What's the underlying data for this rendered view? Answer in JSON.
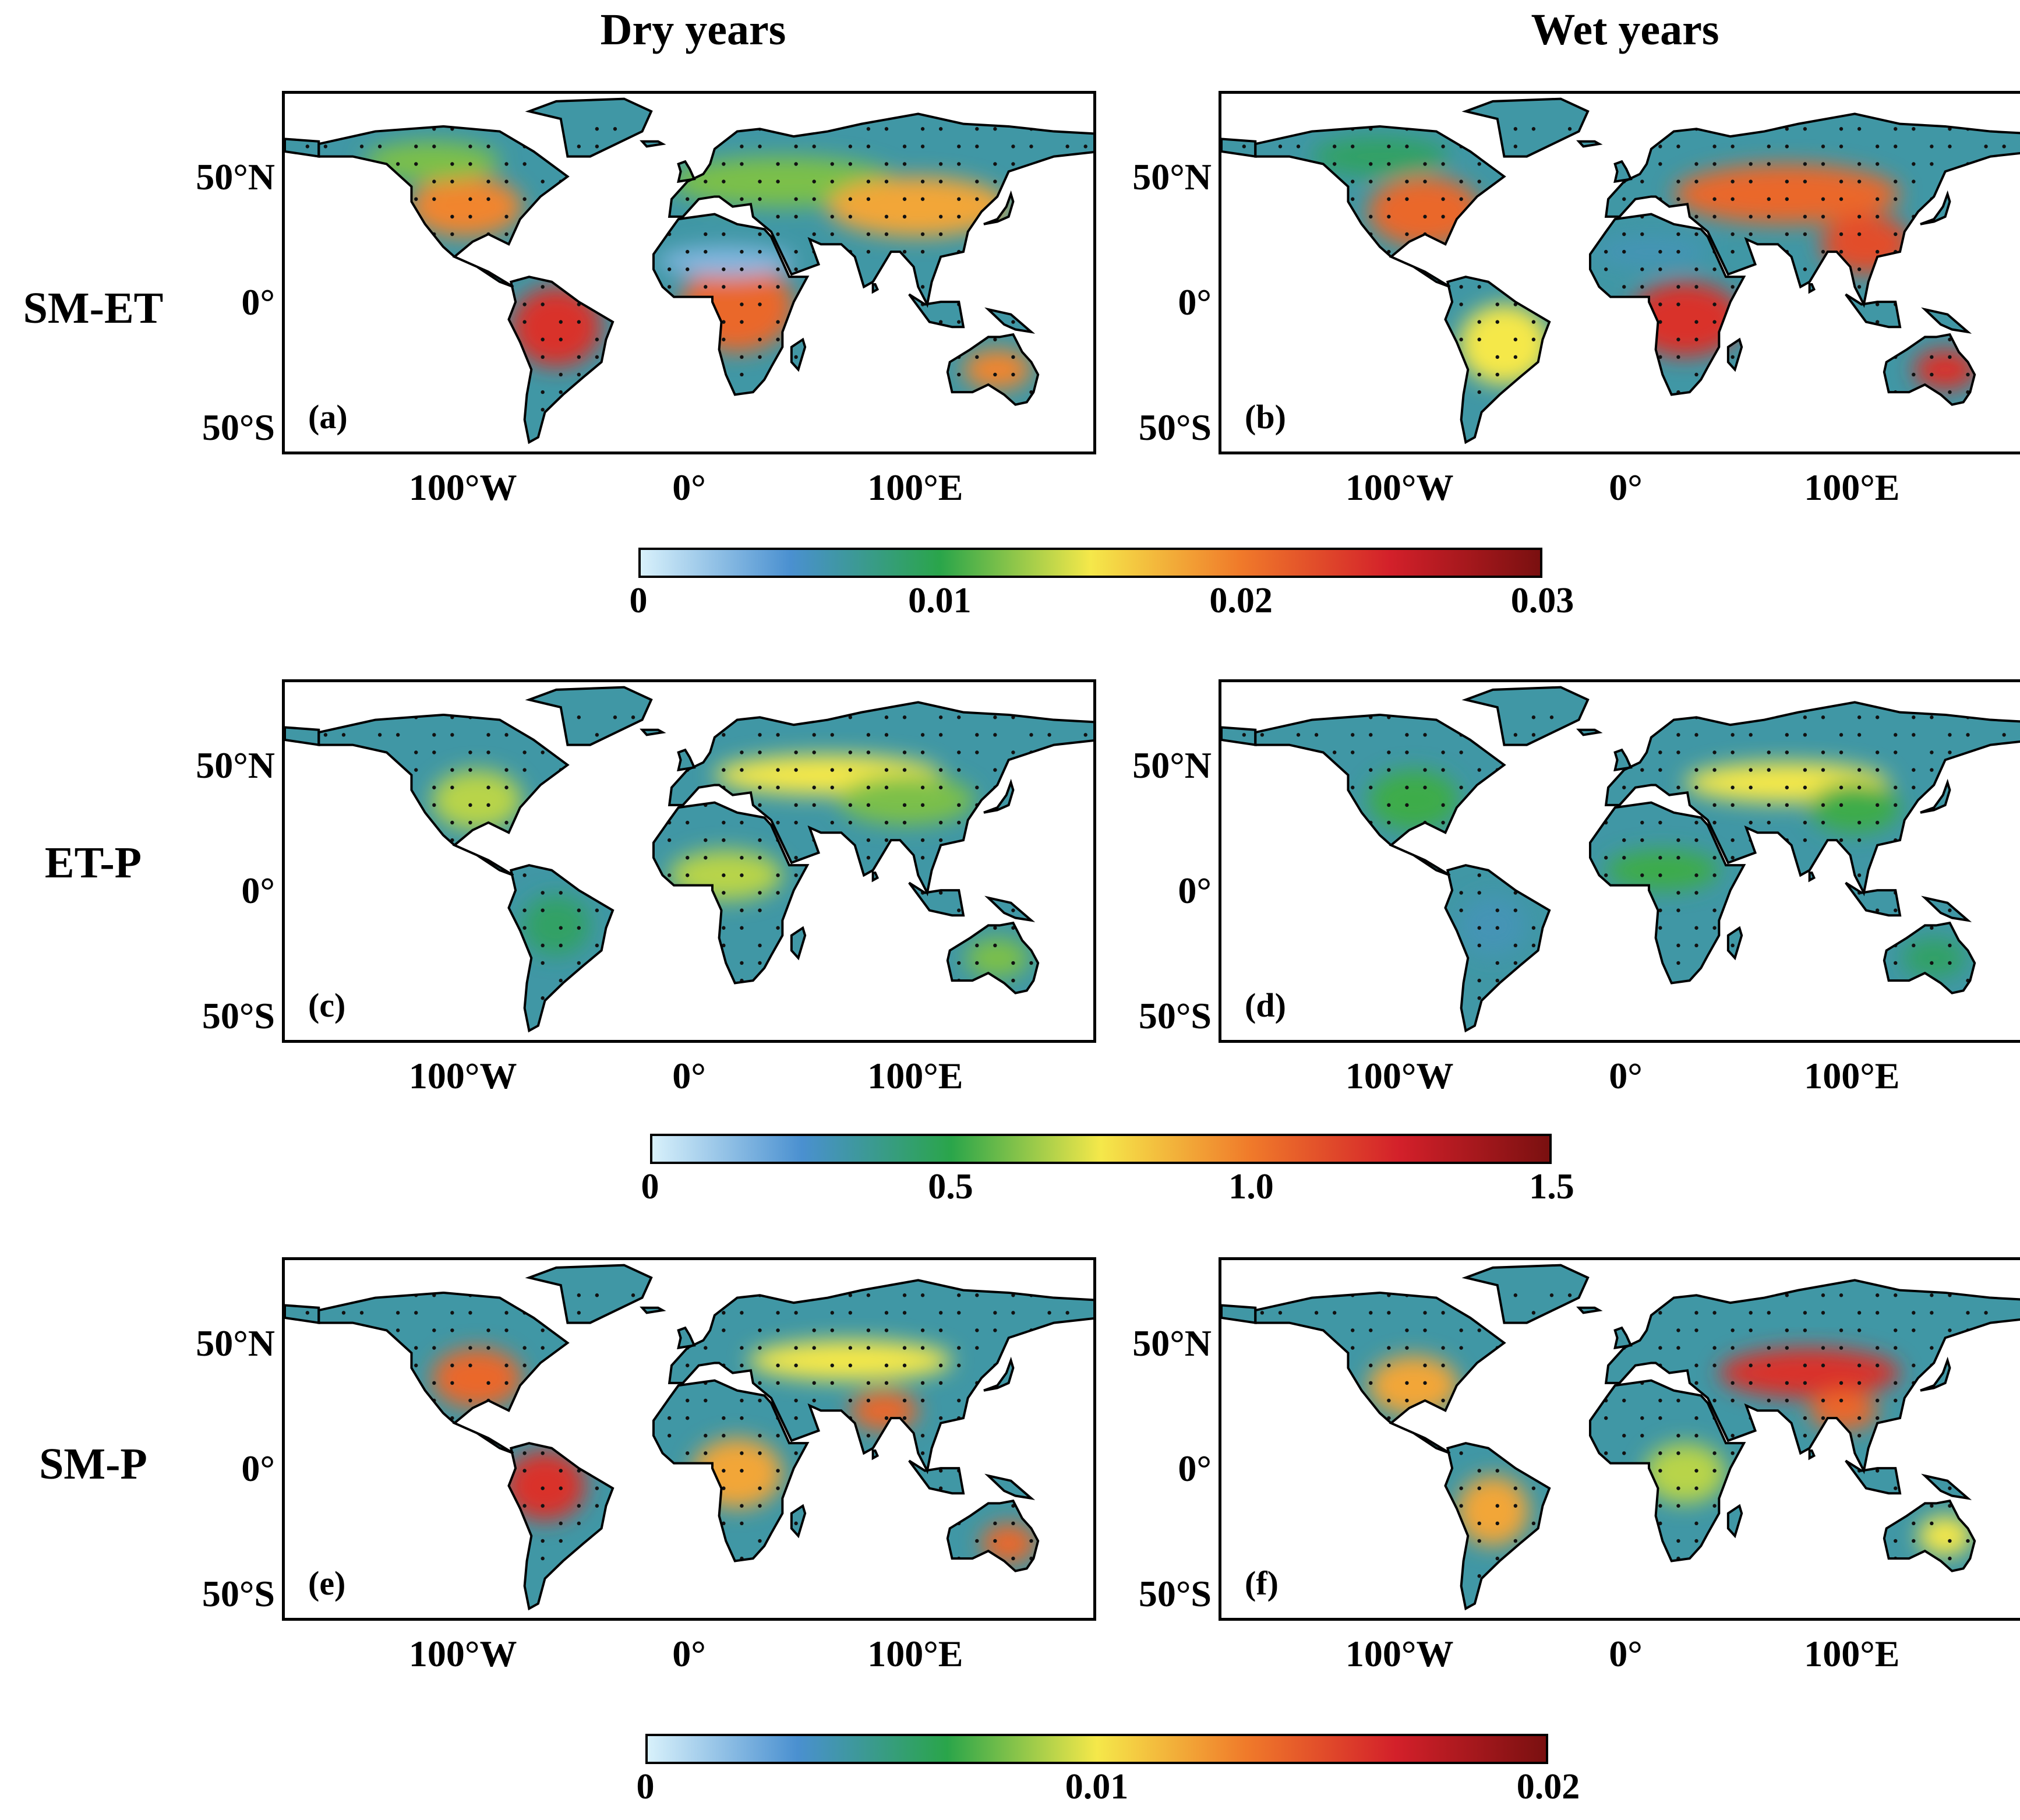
{
  "columns": [
    "Dry years",
    "Wet years"
  ],
  "rows": [
    {
      "label": "SM-ET",
      "panels": [
        "(a)",
        "(b)"
      ],
      "colorbar": {
        "ticks": [
          "0",
          "0.01",
          "0.02",
          "0.03"
        ],
        "min": 0,
        "max": 0.03
      }
    },
    {
      "label": "ET-P",
      "panels": [
        "(c)",
        "(d)"
      ],
      "colorbar": {
        "ticks": [
          "0",
          "0.5",
          "1.0",
          "1.5"
        ],
        "min": 0,
        "max": 1.5
      }
    },
    {
      "label": "SM-P",
      "panels": [
        "(e)",
        "(f)"
      ],
      "colorbar": {
        "ticks": [
          "0",
          "0.01",
          "0.02"
        ],
        "min": 0,
        "max": 0.02
      }
    }
  ],
  "lat_ticks": [
    "50°N",
    "0°",
    "50°S"
  ],
  "lon_ticks": [
    "100°W",
    "0°",
    "100°E"
  ],
  "colormap": [
    "#d8f1fb",
    "#4a90d0",
    "#2aa54a",
    "#f5e84a",
    "#f07a2a",
    "#d3202a",
    "#7a1010"
  ]
}
